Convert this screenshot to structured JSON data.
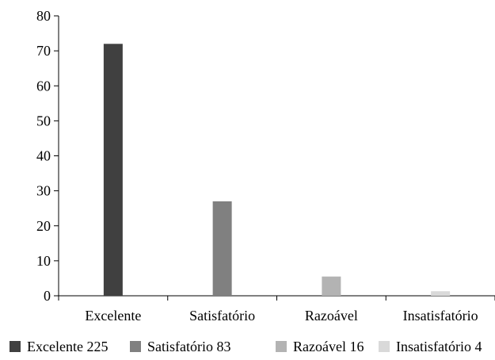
{
  "chart_data": {
    "type": "bar",
    "categories": [
      "Excelente",
      "Satisfatório",
      "Razoável",
      "Insatisfatório"
    ],
    "values": [
      72,
      27,
      5.5,
      1.3
    ],
    "colors": [
      "#404040",
      "#808080",
      "#b3b3b3",
      "#d9d9d9"
    ],
    "ylim": [
      0,
      80
    ],
    "yticks": [
      0,
      10,
      20,
      30,
      40,
      50,
      60,
      70,
      80
    ],
    "grid": false,
    "legend_position": "bottom",
    "legend": [
      {
        "label": "Excelente 225",
        "color": "#404040"
      },
      {
        "label": "Satisfatório 83",
        "color": "#808080"
      },
      {
        "label": "Razoável 16",
        "color": "#b3b3b3"
      },
      {
        "label": "Insatisfatório 4",
        "color": "#d9d9d9"
      }
    ]
  }
}
